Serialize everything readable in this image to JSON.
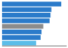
{
  "chart_data": {
    "type": "bar",
    "orientation": "horizontal",
    "values": [
      66000,
      55000,
      54000,
      53000,
      46000,
      44000,
      43000,
      38000
    ],
    "colors": [
      "#2b7bca",
      "#2b7bca",
      "#2b7bca",
      "#2b7bca",
      "#8c8c8c",
      "#2b7bca",
      "#2b7bca",
      "#5bbde8"
    ],
    "xlim": [
      0,
      72000
    ],
    "tick_labels": false
  }
}
